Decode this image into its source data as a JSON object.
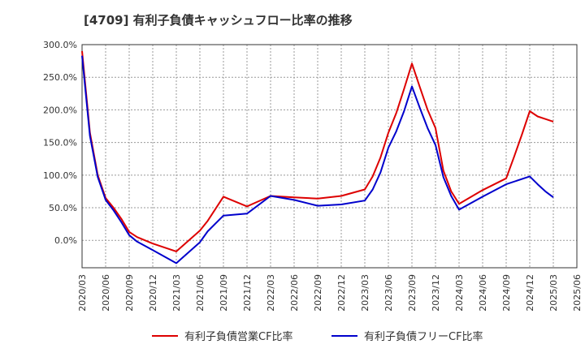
{
  "chart_data": {
    "type": "line",
    "title": "[4709]  有利子負債キャッシュフロー比率の推移",
    "xlabel": "",
    "ylabel": "",
    "ylim": [
      -42,
      300
    ],
    "y_ticks": [
      300,
      250,
      200,
      150,
      100,
      50,
      0
    ],
    "y_tick_labels": [
      "300.0%",
      "250.0%",
      "200.0%",
      "150.0%",
      "100.0%",
      "50.0%",
      "0.0%"
    ],
    "x_tick_labels": [
      "2020/03",
      "2020/06",
      "2020/09",
      "2020/12",
      "2021/03",
      "2021/06",
      "2021/09",
      "2021/12",
      "2022/03",
      "2022/06",
      "2022/09",
      "2022/12",
      "2023/03",
      "2023/06",
      "2023/09",
      "2023/12",
      "2024/03",
      "2024/06",
      "2024/09",
      "2024/12",
      "2025/03",
      "2025/06"
    ],
    "grid": true,
    "legend_position": "bottom",
    "series": [
      {
        "name": "有利子負債営業CF比率",
        "color": "#dd0000",
        "points": [
          [
            "2020/03",
            290
          ],
          [
            "2020/04",
            165
          ],
          [
            "2020/05",
            100
          ],
          [
            "2020/06",
            65
          ],
          [
            "2020/07",
            50
          ],
          [
            "2020/08",
            33
          ],
          [
            "2020/09",
            13
          ],
          [
            "2020/10",
            5
          ],
          [
            "2020/12",
            -5
          ],
          [
            "2021/03",
            -17
          ],
          [
            "2021/06",
            15
          ],
          [
            "2021/07",
            30
          ],
          [
            "2021/09",
            67
          ],
          [
            "2021/12",
            52
          ],
          [
            "2022/03",
            68
          ],
          [
            "2022/06",
            66
          ],
          [
            "2022/09",
            64
          ],
          [
            "2022/12",
            68
          ],
          [
            "2023/03",
            78
          ],
          [
            "2023/04",
            98
          ],
          [
            "2023/05",
            127
          ],
          [
            "2023/06",
            165
          ],
          [
            "2023/07",
            195
          ],
          [
            "2023/08",
            232
          ],
          [
            "2023/09",
            271
          ],
          [
            "2023/10",
            235
          ],
          [
            "2023/11",
            200
          ],
          [
            "2023/12",
            172
          ],
          [
            "2024/01",
            107
          ],
          [
            "2024/02",
            75
          ],
          [
            "2024/03",
            56
          ],
          [
            "2024/06",
            77
          ],
          [
            "2024/09",
            95
          ],
          [
            "2024/10",
            128
          ],
          [
            "2024/11",
            162
          ],
          [
            "2024/12",
            198
          ],
          [
            "2025/01",
            190
          ],
          [
            "2025/02",
            186
          ],
          [
            "2025/03",
            182
          ]
        ]
      },
      {
        "name": "有利子負債フリーCF比率",
        "color": "#0000cc",
        "points": [
          [
            "2020/03",
            283
          ],
          [
            "2020/04",
            160
          ],
          [
            "2020/05",
            97
          ],
          [
            "2020/06",
            62
          ],
          [
            "2020/07",
            46
          ],
          [
            "2020/08",
            28
          ],
          [
            "2020/09",
            8
          ],
          [
            "2020/10",
            -2
          ],
          [
            "2020/12",
            -15
          ],
          [
            "2021/03",
            -35
          ],
          [
            "2021/06",
            -3
          ],
          [
            "2021/07",
            14
          ],
          [
            "2021/09",
            38
          ],
          [
            "2021/12",
            41
          ],
          [
            "2022/03",
            68
          ],
          [
            "2022/06",
            62
          ],
          [
            "2022/09",
            53
          ],
          [
            "2022/12",
            55
          ],
          [
            "2023/03",
            61
          ],
          [
            "2023/04",
            78
          ],
          [
            "2023/05",
            104
          ],
          [
            "2023/06",
            142
          ],
          [
            "2023/07",
            167
          ],
          [
            "2023/08",
            198
          ],
          [
            "2023/09",
            236
          ],
          [
            "2023/10",
            203
          ],
          [
            "2023/11",
            172
          ],
          [
            "2023/12",
            146
          ],
          [
            "2024/01",
            97
          ],
          [
            "2024/02",
            68
          ],
          [
            "2024/03",
            47
          ],
          [
            "2024/06",
            67
          ],
          [
            "2024/09",
            86
          ],
          [
            "2024/12",
            98
          ],
          [
            "2025/01",
            86
          ],
          [
            "2025/02",
            75
          ],
          [
            "2025/03",
            66
          ]
        ]
      }
    ]
  }
}
